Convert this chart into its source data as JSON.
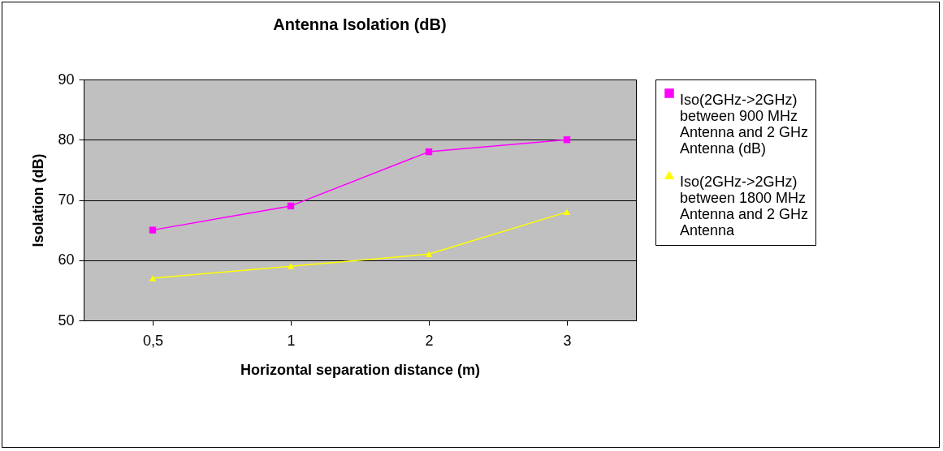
{
  "chart_data": {
    "type": "line",
    "title": "Antenna Isolation (dB)",
    "xlabel": "Horizontal separation distance (m)",
    "ylabel": "Isolation (dB)",
    "categories": [
      "0,5",
      "1",
      "2",
      "3"
    ],
    "series": [
      {
        "name": "Iso(2GHz->2GHz) between 900 MHz Antenna and 2 GHz Antenna (dB)",
        "color": "#ff00ff",
        "marker": "square",
        "values": [
          65,
          69,
          78,
          80
        ]
      },
      {
        "name": "Iso(2GHz->2GHz) between 1800 MHz Antenna and 2 GHz Antenna",
        "color": "#ffff00",
        "marker": "triangle",
        "values": [
          57,
          59,
          61,
          68
        ]
      }
    ],
    "ylim": [
      50,
      90
    ],
    "yticks": [
      50,
      60,
      70,
      80,
      90
    ],
    "grid": "y",
    "legend": "right",
    "line_style": "solid"
  }
}
